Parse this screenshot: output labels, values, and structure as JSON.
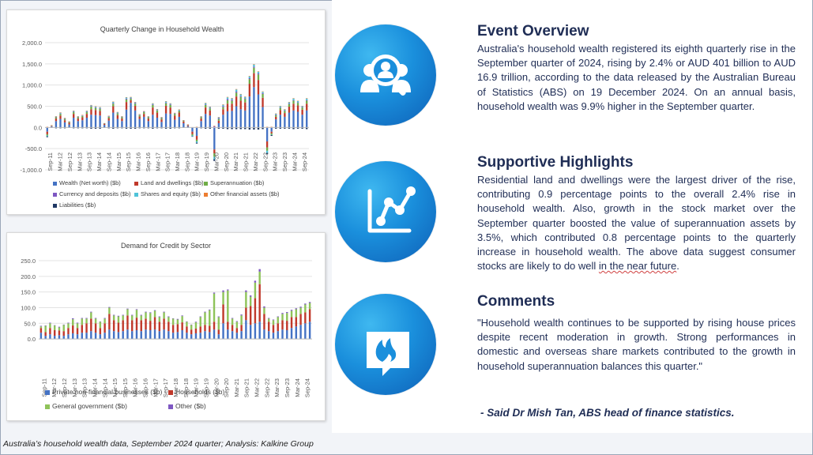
{
  "charts": [
    {
      "id": "wealth",
      "chart_data": {
        "type": "bar",
        "stacked": true,
        "title": "Quarterly Change in Household Wealth",
        "ylim": [
          -1000,
          2000
        ],
        "yticks": [
          "2,000.0",
          "1,500.0",
          "1,000.0",
          "500.0",
          "0.0",
          "-500.0",
          "-1,000.0"
        ],
        "ytick_values": [
          2000,
          1500,
          1000,
          500,
          0,
          -500,
          -1000
        ],
        "x_labels": [
          "Sep-11",
          "Mar-12",
          "Sep-12",
          "Mar-13",
          "Sep-13",
          "Mar-14",
          "Sep-14",
          "Mar-15",
          "Sep-15",
          "Mar-16",
          "Sep-16",
          "Mar-17",
          "Sep-17",
          "Mar-18",
          "Sep-18",
          "Mar-19",
          "Sep-19",
          "Mar-20",
          "Sep-20",
          "Mar-21",
          "Sep-21",
          "Mar-22",
          "Sep-22",
          "Mar-23",
          "Sep-23",
          "Mar-24",
          "Sep-24"
        ],
        "grid": "horizontal",
        "series": [
          {
            "name": "Wealth (Net worth) ($b)",
            "color": "#4472c4",
            "values": [
              -100,
              20,
              150,
              200,
              120,
              70,
              230,
              150,
              170,
              230,
              300,
              290,
              280,
              60,
              160,
              350,
              200,
              150,
              420,
              580,
              400,
              200,
              250,
              150,
              300,
              230,
              130,
              330,
              320,
              180,
              250,
              100,
              30,
              -100,
              -200,
              150,
              320,
              280,
              -520,
              100,
              300,
              380,
              390,
              500,
              430,
              400,
              730,
              950,
              780,
              480,
              -330,
              -100,
              190,
              300,
              250,
              350,
              400,
              370,
              300,
              400
            ]
          },
          {
            "name": "Land and dwellings ($b)",
            "color": "#c0392b",
            "values": [
              -60,
              10,
              60,
              80,
              50,
              40,
              90,
              60,
              70,
              90,
              130,
              120,
              110,
              20,
              60,
              150,
              90,
              60,
              180,
              60,
              110,
              60,
              70,
              60,
              170,
              120,
              60,
              180,
              150,
              100,
              100,
              40,
              20,
              -60,
              -90,
              60,
              150,
              120,
              -90,
              60,
              130,
              180,
              170,
              230,
              200,
              190,
              300,
              330,
              340,
              220,
              -140,
              -40,
              60,
              110,
              90,
              140,
              160,
              150,
              120,
              160
            ]
          },
          {
            "name": "Superannuation ($b)",
            "color": "#70ad47",
            "values": [
              -30,
              10,
              30,
              40,
              30,
              20,
              40,
              30,
              30,
              40,
              60,
              50,
              50,
              10,
              30,
              60,
              40,
              30,
              60,
              40,
              50,
              30,
              40,
              30,
              60,
              50,
              30,
              60,
              60,
              40,
              40,
              20,
              10,
              -30,
              -40,
              30,
              60,
              50,
              -80,
              40,
              50,
              80,
              70,
              90,
              90,
              80,
              110,
              130,
              130,
              90,
              -80,
              -30,
              40,
              50,
              50,
              60,
              70,
              60,
              50,
              70
            ]
          },
          {
            "name": "Currency and deposits ($b)",
            "color": "#7e57c2",
            "values": [
              10,
              5,
              10,
              10,
              10,
              5,
              10,
              10,
              10,
              10,
              15,
              15,
              15,
              5,
              10,
              15,
              10,
              10,
              20,
              15,
              15,
              10,
              10,
              10,
              15,
              10,
              10,
              15,
              15,
              10,
              10,
              5,
              5,
              5,
              10,
              10,
              15,
              15,
              30,
              20,
              25,
              30,
              25,
              25,
              20,
              20,
              25,
              25,
              25,
              20,
              10,
              10,
              15,
              15,
              15,
              15,
              15,
              15,
              15,
              15
            ]
          },
          {
            "name": "Shares and equity ($b)",
            "color": "#4fc3d9",
            "values": [
              -20,
              5,
              10,
              20,
              10,
              5,
              20,
              10,
              10,
              20,
              20,
              20,
              20,
              5,
              10,
              30,
              20,
              10,
              30,
              20,
              20,
              10,
              10,
              10,
              20,
              20,
              10,
              30,
              20,
              10,
              20,
              5,
              5,
              -20,
              -30,
              10,
              30,
              20,
              -60,
              20,
              30,
              40,
              30,
              50,
              40,
              30,
              40,
              50,
              40,
              30,
              -50,
              -10,
              20,
              30,
              20,
              30,
              40,
              30,
              20,
              40
            ]
          },
          {
            "name": "Other financial assets ($b)",
            "color": "#ed7d31",
            "values": [
              5,
              2,
              5,
              5,
              5,
              2,
              5,
              5,
              5,
              5,
              5,
              5,
              5,
              2,
              5,
              5,
              5,
              5,
              5,
              5,
              5,
              5,
              5,
              5,
              5,
              5,
              5,
              5,
              5,
              5,
              5,
              2,
              2,
              2,
              5,
              5,
              5,
              5,
              10,
              5,
              10,
              10,
              10,
              10,
              10,
              10,
              10,
              10,
              10,
              10,
              5,
              5,
              5,
              5,
              5,
              5,
              5,
              5,
              5,
              5
            ]
          },
          {
            "name": "Liabilities ($b)",
            "color": "#1f3864",
            "values": [
              -20,
              -10,
              -20,
              -20,
              -20,
              -10,
              -20,
              -20,
              -20,
              -20,
              -30,
              -30,
              -30,
              -10,
              -20,
              -30,
              -20,
              -20,
              -30,
              -30,
              -30,
              -20,
              -20,
              -20,
              -30,
              -20,
              -20,
              -30,
              -30,
              -20,
              -20,
              -10,
              -10,
              -10,
              -20,
              -20,
              -30,
              -30,
              -40,
              -30,
              -30,
              -40,
              -40,
              -40,
              -40,
              -40,
              -50,
              -50,
              -50,
              -40,
              -30,
              -20,
              -30,
              -30,
              -30,
              -30,
              -40,
              -30,
              -30,
              -40
            ]
          }
        ]
      }
    },
    {
      "id": "credit",
      "chart_data": {
        "type": "bar",
        "stacked": true,
        "title": "Demand for Credit by Sector",
        "ylim": [
          -25,
          250
        ],
        "yticks": [
          "250.0",
          "200.0",
          "150.0",
          "100.0",
          "50.0",
          "0.0"
        ],
        "ytick_values": [
          250,
          200,
          150,
          100,
          50,
          0
        ],
        "x_labels": [
          "Sep-11",
          "Mar-12",
          "Sep-12",
          "Mar-13",
          "Sep-13",
          "Mar-14",
          "Sep-14",
          "Mar-15",
          "Sep-15",
          "Mar-16",
          "Sep-16",
          "Mar-17",
          "Sep-17",
          "Mar-18",
          "Sep-18",
          "Mar-19",
          "Sep-19",
          "Mar-20",
          "Sep-20",
          "Mar-21",
          "Sep-21",
          "Mar-22",
          "Sep-22",
          "Mar-23",
          "Sep-23",
          "Mar-24",
          "Sep-24"
        ],
        "grid": "horizontal",
        "series": [
          {
            "name": "Private non-financial businesses ($b)",
            "color": "#4472c4",
            "values": [
              20,
              10,
              15,
              10,
              12,
              10,
              15,
              18,
              15,
              20,
              20,
              25,
              20,
              15,
              20,
              30,
              25,
              22,
              25,
              30,
              25,
              28,
              25,
              30,
              28,
              30,
              25,
              30,
              25,
              20,
              22,
              28,
              20,
              15,
              18,
              20,
              25,
              22,
              30,
              15,
              50,
              30,
              25,
              20,
              25,
              60,
              45,
              50,
              55,
              30,
              25,
              20,
              25,
              30,
              28,
              35,
              40,
              45,
              50,
              55
            ]
          },
          {
            "name": "Households ($b)",
            "color": "#c0392b",
            "values": [
              15,
              12,
              20,
              18,
              15,
              15,
              20,
              25,
              20,
              25,
              30,
              40,
              30,
              20,
              30,
              50,
              35,
              30,
              35,
              45,
              35,
              40,
              35,
              35,
              30,
              40,
              30,
              35,
              30,
              25,
              25,
              25,
              20,
              15,
              15,
              20,
              20,
              20,
              25,
              15,
              60,
              25,
              20,
              15,
              20,
              40,
              60,
              80,
              120,
              50,
              30,
              25,
              25,
              30,
              30,
              35,
              30,
              35,
              35,
              40
            ]
          },
          {
            "name": "General government ($b)",
            "color": "#8fc35a",
            "values": [
              5,
              20,
              15,
              15,
              10,
              20,
              15,
              20,
              15,
              20,
              15,
              20,
              15,
              20,
              15,
              20,
              15,
              20,
              15,
              20,
              15,
              25,
              15,
              20,
              25,
              20,
              15,
              20,
              15,
              20,
              15,
              20,
              15,
              15,
              20,
              30,
              40,
              50,
              90,
              40,
              40,
              100,
              20,
              20,
              30,
              50,
              30,
              50,
              40,
              20,
              10,
              15,
              20,
              20,
              25,
              20,
              25,
              20,
              25,
              20
            ]
          },
          {
            "name": "Other ($b)",
            "color": "#7e57c2",
            "values": [
              2,
              1,
              2,
              1,
              2,
              1,
              2,
              3,
              2,
              2,
              2,
              2,
              2,
              1,
              2,
              2,
              2,
              2,
              2,
              2,
              2,
              2,
              2,
              2,
              2,
              2,
              2,
              2,
              2,
              1,
              2,
              2,
              1,
              1,
              2,
              2,
              2,
              2,
              3,
              2,
              5,
              3,
              2,
              2,
              3,
              5,
              4,
              6,
              8,
              4,
              2,
              2,
              2,
              3,
              3,
              3,
              3,
              3,
              3,
              3
            ]
          }
        ]
      }
    }
  ],
  "sections": {
    "overview": {
      "title": "Event Overview",
      "body": "Australia's household wealth registered its eighth quarterly rise in the September quarter of 2024, rising by 2.4% or AUD 401 billion to AUD 16.9 trillion, according to the data released by the Australian Bureau of Statistics (ABS) on 19 December 2024. On an annual basis, household wealth was 9.9% higher in the September quarter.",
      "icon": "people-magnifier-icon"
    },
    "highlights": {
      "title": "Supportive Highlights",
      "body_main": "Residential land and dwellings were the largest driver of the rise, contributing 0.9 percentage points to the overall 2.4% rise in household wealth. Also, growth in the stock market over the September quarter boosted the value of superannuation assets by 3.5%, which contributed 0.8 percentage points to the quarterly increase in household wealth. The above data suggest consumer stocks are likely to do well ",
      "body_underlined": "in the near future",
      "body_end": ".",
      "icon": "line-chart-icon"
    },
    "comments": {
      "title": "Comments",
      "body": "\"Household wealth continues to be supported by rising house prices despite recent moderation in growth. Strong performances in domestic and overseas share markets contributed to the growth in household superannuation balances this quarter.\"",
      "attribution": "- Said Dr Mish Tan, ABS head of finance statistics.",
      "icon": "chat-flame-icon"
    }
  },
  "footer": "Australia’s household wealth data, September 2024 quarter; Analysis: Kalkine Group",
  "colors": {
    "accent": "#1a8fdc",
    "text_dark": "#1f2d55"
  }
}
